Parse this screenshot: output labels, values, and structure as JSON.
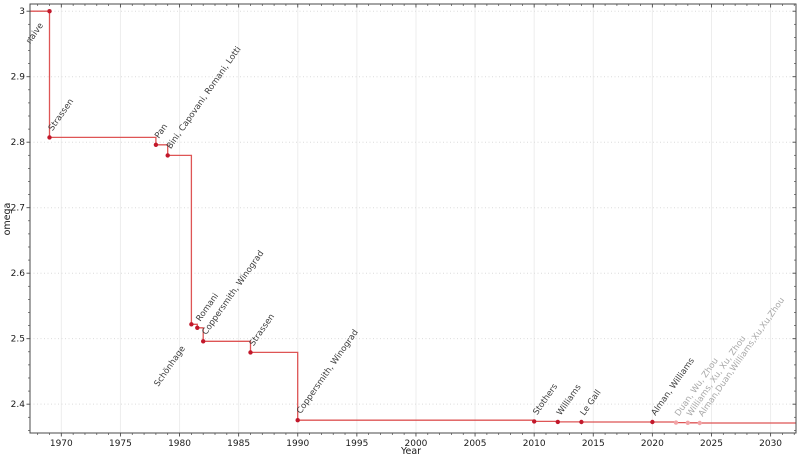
{
  "chart_data": {
    "type": "line",
    "step": "post",
    "title": "",
    "xlabel": "Year",
    "ylabel": "omega",
    "xlim": [
      1967.35,
      2032.15
    ],
    "ylim": [
      2.356,
      3.011
    ],
    "x_ticks": [
      1970,
      1975,
      1980,
      1985,
      1990,
      1995,
      2000,
      2005,
      2010,
      2015,
      2020,
      2025,
      2030
    ],
    "x_minor_step": 1,
    "y_ticks": [
      2.4,
      2.5,
      2.6,
      2.7,
      2.8,
      2.9,
      3.0
    ],
    "y_minor_step": 0.02,
    "grid": true,
    "legend": "none",
    "points": [
      {
        "year": 1969,
        "omega": 3.0,
        "label": "naive",
        "label_side": "below",
        "dy": 14
      },
      {
        "year": 1969,
        "omega": 2.8074,
        "label": "Strassen"
      },
      {
        "year": 1978,
        "omega": 2.796,
        "label": "Pan"
      },
      {
        "year": 1979,
        "omega": 2.7799,
        "label": "Bini, Capovani, Romani, Lotti"
      },
      {
        "year": 1981,
        "omega": 2.522,
        "label": "Schönhage",
        "label_side": "below",
        "dy": 24
      },
      {
        "year": 1981.5,
        "omega": 2.5166,
        "label": "Romani"
      },
      {
        "year": 1982,
        "omega": 2.496,
        "label": "Coppersmith, Winograd"
      },
      {
        "year": 1986,
        "omega": 2.479,
        "label": "Strassen"
      },
      {
        "year": 1990,
        "omega": 2.3755,
        "label": "Coppersmith, Winograd"
      },
      {
        "year": 2010,
        "omega": 2.3737,
        "label": "Stothers"
      },
      {
        "year": 2012,
        "omega": 2.3729,
        "label": "Williams"
      },
      {
        "year": 2014,
        "omega": 2.37287,
        "label": "Le Gall"
      },
      {
        "year": 2020,
        "omega": 2.37286,
        "label": "Alman, Williams"
      },
      {
        "year": 2022,
        "omega": 2.37187,
        "label": "Duan, Wu, Zhou",
        "faded": true
      },
      {
        "year": 2023,
        "omega": 2.37155,
        "label": "Williams, Xu, Xu, Zhou",
        "faded": true
      },
      {
        "year": 2024,
        "omega": 2.37134,
        "label": "Alman,Duan,Williams,Xu,Xu,Zhou",
        "faded": true
      }
    ],
    "colors": {
      "line": "#da4343",
      "marker": "#c2182b",
      "marker_faded": "#f2a3a6",
      "label": "#3c3c3c",
      "label_faded": "#a8a8a8",
      "grid_vertical": "#ededed",
      "grid_horizontal": "#dcdcdc",
      "axis": "#4a4a4a",
      "tick_label": "#1a1a1a",
      "background": "#ffffff"
    }
  }
}
